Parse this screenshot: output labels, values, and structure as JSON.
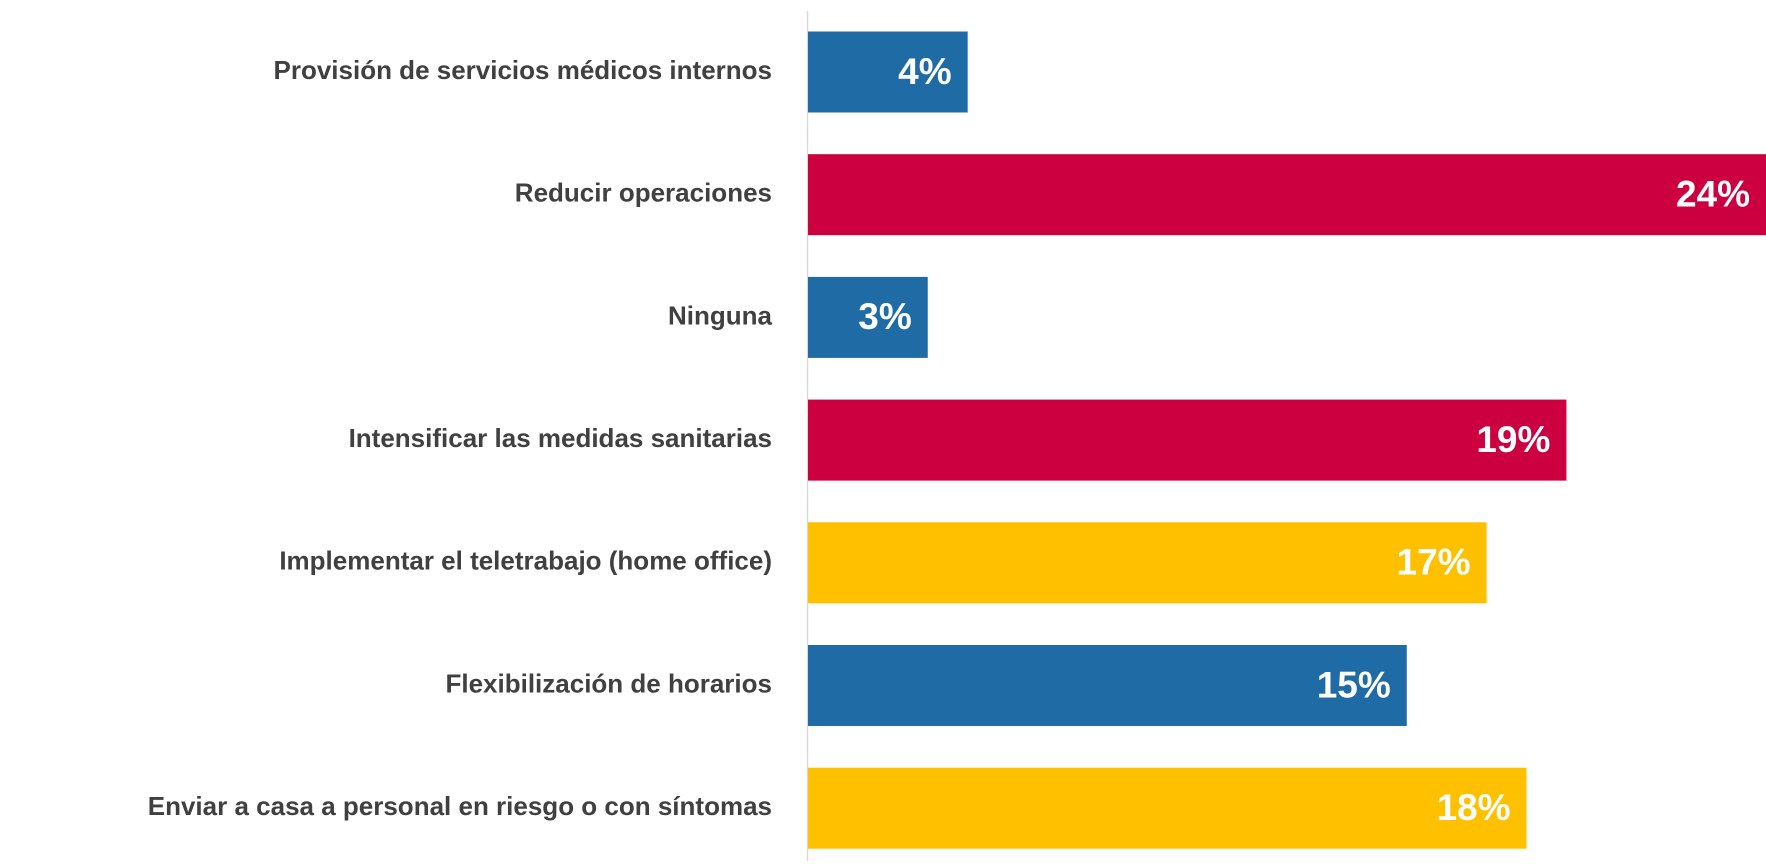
{
  "chart_data": {
    "type": "bar",
    "orientation": "horizontal",
    "categories": [
      "Provisión de servicios médicos internos",
      "Reducir operaciones",
      "Ninguna",
      "Intensificar las medidas sanitarias",
      "Implementar el teletrabajo (home office)",
      "Flexibilización de horarios",
      "Enviar a casa a personal en riesgo o con síntomas"
    ],
    "values": [
      4,
      24,
      3,
      19,
      17,
      15,
      18
    ],
    "value_labels": [
      "4%",
      "24%",
      "3%",
      "19%",
      "17%",
      "15%",
      "18%"
    ],
    "colors": [
      "#1f6ba5",
      "#cc0040",
      "#1f6ba5",
      "#cc0040",
      "#ffc000",
      "#1f6ba5",
      "#ffc000"
    ]
  }
}
